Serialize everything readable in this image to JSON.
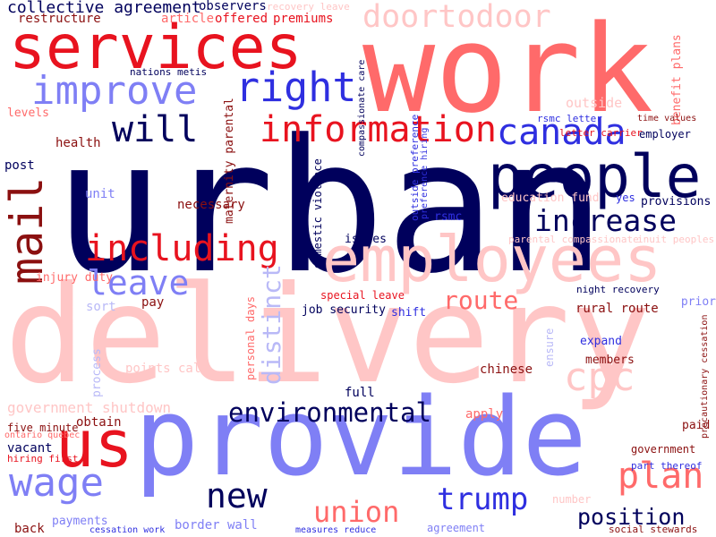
{
  "palette": {
    "navy": "#00005c",
    "blue": "#2f2fe0",
    "periwinkle": "#7f7ff5",
    "lavender": "#b9b9f7",
    "red": "#e8131f",
    "coral": "#ff6a6a",
    "pink": "#ffc6c6",
    "maroon": "#8b1010"
  },
  "words": [
    {
      "text": "urban",
      "color": "navy"
    },
    {
      "text": "delivery",
      "color": "pink"
    },
    {
      "text": "work",
      "color": "coral"
    },
    {
      "text": "provide",
      "color": "periwinkle"
    },
    {
      "text": "services",
      "color": "red"
    },
    {
      "text": "employees",
      "color": "pink"
    },
    {
      "text": "people",
      "color": "navy"
    },
    {
      "text": "mail",
      "color": "maroon"
    },
    {
      "text": "us",
      "color": "red"
    },
    {
      "text": "including",
      "color": "red"
    },
    {
      "text": "improve",
      "color": "periwinkle"
    },
    {
      "text": "doortodoor",
      "color": "pink"
    },
    {
      "text": "right",
      "color": "blue"
    },
    {
      "text": "information",
      "color": "red"
    },
    {
      "text": "canada",
      "color": "blue"
    },
    {
      "text": "will",
      "color": "navy"
    },
    {
      "text": "increase",
      "color": "navy"
    },
    {
      "text": "leave",
      "color": "periwinkle"
    },
    {
      "text": "wage",
      "color": "periwinkle"
    },
    {
      "text": "new",
      "color": "navy"
    },
    {
      "text": "plan",
      "color": "coral"
    },
    {
      "text": "cpc",
      "color": "pink"
    },
    {
      "text": "union",
      "color": "coral"
    },
    {
      "text": "trump",
      "color": "blue"
    },
    {
      "text": "environmental",
      "color": "navy"
    },
    {
      "text": "route",
      "color": "coral"
    },
    {
      "text": "position",
      "color": "navy"
    },
    {
      "text": "distinct",
      "color": "lavender"
    },
    {
      "text": "collective agreement",
      "color": "navy"
    },
    {
      "text": "restructure",
      "color": "maroon"
    },
    {
      "text": "article",
      "color": "coral"
    },
    {
      "text": "offered",
      "color": "red"
    },
    {
      "text": "premiums",
      "color": "red"
    },
    {
      "text": "observers",
      "color": "navy"
    },
    {
      "text": "recovery leave",
      "color": "pink"
    },
    {
      "text": "compassionate care",
      "color": "navy"
    },
    {
      "text": "benefit plans",
      "color": "coral"
    },
    {
      "text": "nations metis",
      "color": "navy"
    },
    {
      "text": "levels",
      "color": "coral"
    },
    {
      "text": "outside",
      "color": "pink"
    },
    {
      "text": "rsmc letter",
      "color": "blue"
    },
    {
      "text": "time values",
      "color": "maroon"
    },
    {
      "text": "letter carrier",
      "color": "red"
    },
    {
      "text": "employer",
      "color": "navy"
    },
    {
      "text": "health",
      "color": "maroon"
    },
    {
      "text": "post",
      "color": "navy"
    },
    {
      "text": "unit",
      "color": "periwinkle"
    },
    {
      "text": "necessary",
      "color": "maroon"
    },
    {
      "text": "maternity parental",
      "color": "maroon"
    },
    {
      "text": "domestic violence",
      "color": "navy"
    },
    {
      "text": "outside preference",
      "color": "blue"
    },
    {
      "text": "preference hiring",
      "color": "blue"
    },
    {
      "text": "education fund",
      "color": "pink"
    },
    {
      "text": "yes",
      "color": "blue"
    },
    {
      "text": "provisions",
      "color": "navy"
    },
    {
      "text": "rsmc",
      "color": "blue"
    },
    {
      "text": "issues",
      "color": "navy"
    },
    {
      "text": "parental compassionate",
      "color": "pink"
    },
    {
      "text": "inuit peoples",
      "color": "pink"
    },
    {
      "text": "injury duty",
      "color": "coral"
    },
    {
      "text": "sort",
      "color": "lavender"
    },
    {
      "text": "pay",
      "color": "maroon"
    },
    {
      "text": "personal days",
      "color": "coral"
    },
    {
      "text": "special leave",
      "color": "red"
    },
    {
      "text": "job security",
      "color": "navy"
    },
    {
      "text": "shift",
      "color": "blue"
    },
    {
      "text": "night recovery",
      "color": "navy"
    },
    {
      "text": "rural route",
      "color": "maroon"
    },
    {
      "text": "prior",
      "color": "periwinkle"
    },
    {
      "text": "expand",
      "color": "blue"
    },
    {
      "text": "members",
      "color": "maroon"
    },
    {
      "text": "process",
      "color": "lavender"
    },
    {
      "text": "points call",
      "color": "pink"
    },
    {
      "text": "ensure",
      "color": "lavender"
    },
    {
      "text": "chinese",
      "color": "maroon"
    },
    {
      "text": "full",
      "color": "navy"
    },
    {
      "text": "government shutdown",
      "color": "pink"
    },
    {
      "text": "apply",
      "color": "coral"
    },
    {
      "text": "paid",
      "color": "maroon"
    },
    {
      "text": "obtain",
      "color": "maroon"
    },
    {
      "text": "five minute",
      "color": "maroon"
    },
    {
      "text": "ontario quebec",
      "color": "coral"
    },
    {
      "text": "vacant",
      "color": "navy"
    },
    {
      "text": "hiring first",
      "color": "red"
    },
    {
      "text": "government",
      "color": "maroon"
    },
    {
      "text": "part thereof",
      "color": "blue"
    },
    {
      "text": "precautionary cessation",
      "color": "maroon"
    },
    {
      "text": "back",
      "color": "maroon"
    },
    {
      "text": "payments",
      "color": "periwinkle"
    },
    {
      "text": "cessation work",
      "color": "blue"
    },
    {
      "text": "border wall",
      "color": "periwinkle"
    },
    {
      "text": "measures reduce",
      "color": "blue"
    },
    {
      "text": "agreement",
      "color": "periwinkle"
    },
    {
      "text": "number",
      "color": "pink"
    },
    {
      "text": "social stewards",
      "color": "maroon"
    }
  ]
}
